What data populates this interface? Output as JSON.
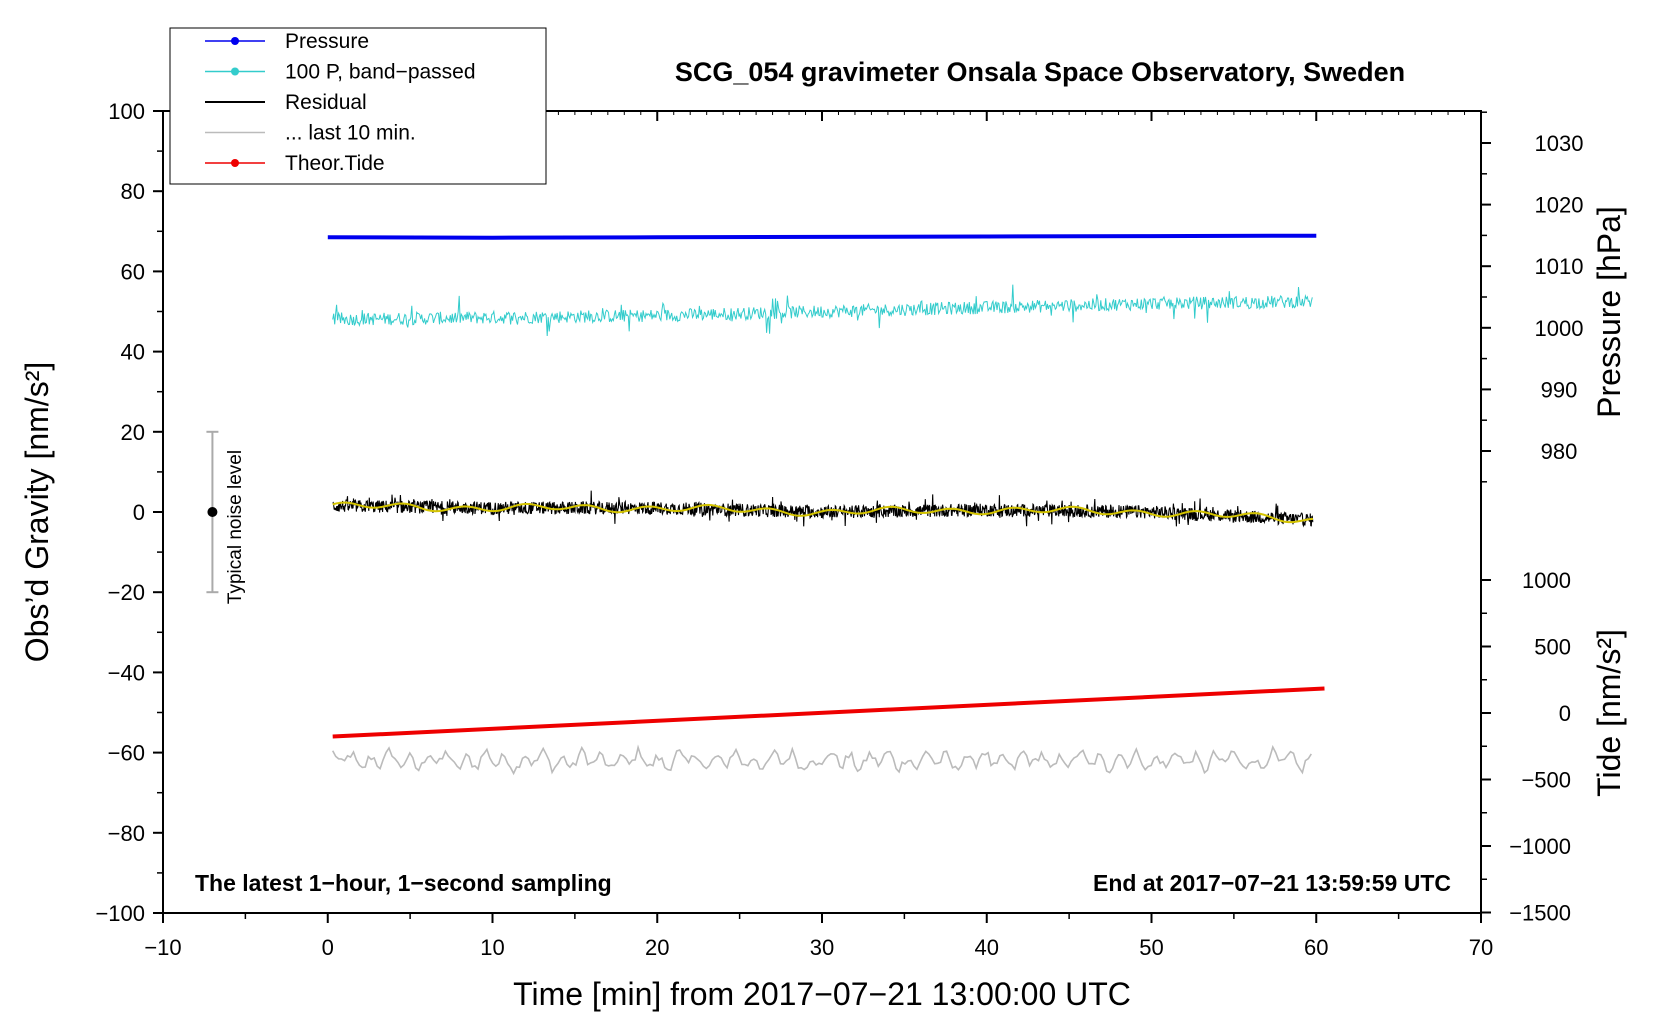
{
  "chart_data": {
    "type": "line",
    "title": "SCG_054 gravimeter Onsala Space Observatory, Sweden",
    "xlabel": "Time [min] from 2017−07−21 13:00:00 UTC",
    "ylabel_left": "Obs’d Gravity [nm/s²]",
    "ylabel_right_top": "Pressure [hPa]",
    "ylabel_right_bottom": "Tide [nm/s²]",
    "xlim": [
      -10,
      70
    ],
    "ylim": [
      -100,
      100
    ],
    "pressure_axis": {
      "range": [
        980,
        1030
      ],
      "ticks": [
        "980",
        "990",
        "1000",
        "1010",
        "1020",
        "1030"
      ]
    },
    "tide_axis": {
      "range": [
        -1500,
        1000
      ],
      "ticks": [
        "1000",
        "500",
        "0",
        "−500",
        "−1000",
        "−1500"
      ]
    },
    "x_ticks": [
      "−10",
      "0",
      "10",
      "20",
      "30",
      "40",
      "50",
      "60",
      "70"
    ],
    "y_ticks": [
      "100",
      "80",
      "60",
      "40",
      "20",
      "0",
      "−20",
      "−40",
      "−60",
      "−80",
      "−100"
    ],
    "grid": false,
    "legend_position": "top-left",
    "annotations": {
      "left": "The latest 1−hour, 1−second sampling",
      "right": "End at 2017−07−21 13:59:59 UTC",
      "noise_label": "Typical noise level"
    },
    "noise_bar": {
      "x": -7,
      "center": 0,
      "low": -20,
      "high": 20
    },
    "series": [
      {
        "name": "Pressure",
        "color": "#0000ee",
        "x": [
          0,
          10,
          20,
          30,
          40,
          50,
          60
        ],
        "y": [
          68.5,
          68.4,
          68.5,
          68.6,
          68.7,
          68.8,
          68.9
        ],
        "pressure_hPa": [
          1014.6,
          1014.6,
          1014.6,
          1014.7,
          1014.7,
          1014.8,
          1014.8
        ]
      },
      {
        "name": "100 P, band−passed",
        "color": "#33cccc",
        "x": [
          0,
          10,
          20,
          30,
          40,
          50,
          60
        ],
        "y": [
          48,
          48.5,
          49,
          50,
          51,
          52,
          52.5
        ],
        "range": [
          41,
          58
        ]
      },
      {
        "name": "Residual",
        "color": "#000000",
        "x": [
          0,
          10,
          20,
          30,
          40,
          50,
          60
        ],
        "y": [
          1.5,
          1,
          1,
          0,
          0.5,
          0,
          -2
        ],
        "range": [
          -6,
          6
        ]
      },
      {
        "name": "... last 10 min.",
        "color": "#bbbbbb",
        "x": [
          0,
          10,
          20,
          30,
          40,
          50,
          60
        ],
        "y": [
          -62,
          -62,
          -62,
          -62,
          -62,
          -62,
          -62
        ],
        "range": [
          -67,
          -57
        ]
      },
      {
        "name": "Theor.Tide",
        "color": "#ee0000",
        "x": [
          0,
          60
        ],
        "y": [
          -56,
          -44
        ],
        "tide_nm_s2": [
          -180,
          180
        ]
      }
    ]
  }
}
